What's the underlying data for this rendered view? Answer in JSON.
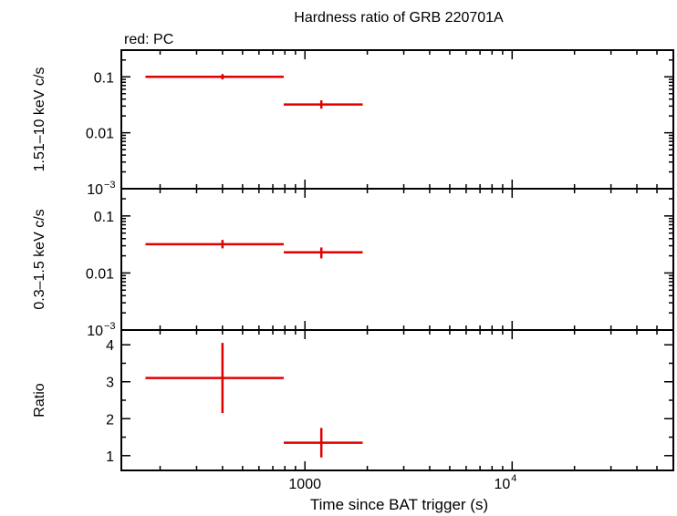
{
  "title": "Hardness ratio of GRB 220701A",
  "legend_text": "red: PC",
  "colors": {
    "series": "#e00000",
    "axis": "#000000"
  },
  "chart_data": [
    {
      "type": "scatter",
      "panel": "hard",
      "ylabel": "1.51–10 keV c/s",
      "yscale": "log",
      "ylim": [
        0.001,
        0.3
      ],
      "xscale": "log",
      "xlim": [
        130,
        60000
      ],
      "yticks": [
        {
          "value": 0.1,
          "label": "0.1"
        },
        {
          "value": 0.01,
          "label": "0.01"
        },
        {
          "value": 0.001,
          "label": "10",
          "exp": "−3"
        }
      ],
      "series": [
        {
          "points": [
            {
              "x": 400,
              "xlo": 170,
              "xhi": 790,
              "y": 0.1,
              "ylo": 0.09,
              "yhi": 0.112
            },
            {
              "x": 1200,
              "xlo": 790,
              "xhi": 1900,
              "y": 0.032,
              "ylo": 0.027,
              "yhi": 0.038
            }
          ]
        }
      ]
    },
    {
      "type": "scatter",
      "panel": "soft",
      "ylabel": "0.3–1.5 keV c/s",
      "yscale": "log",
      "ylim": [
        0.001,
        0.3
      ],
      "xscale": "log",
      "xlim": [
        130,
        60000
      ],
      "yticks": [
        {
          "value": 0.1,
          "label": "0.1"
        },
        {
          "value": 0.01,
          "label": "0.01"
        },
        {
          "value": 0.001,
          "label": "10",
          "exp": "−3"
        }
      ],
      "series": [
        {
          "points": [
            {
              "x": 400,
              "xlo": 170,
              "xhi": 790,
              "y": 0.032,
              "ylo": 0.027,
              "yhi": 0.038
            },
            {
              "x": 1200,
              "xlo": 790,
              "xhi": 1900,
              "y": 0.023,
              "ylo": 0.018,
              "yhi": 0.028
            }
          ]
        }
      ]
    },
    {
      "type": "scatter",
      "panel": "ratio",
      "ylabel": "Ratio",
      "xlabel": "Time since BAT trigger (s)",
      "yscale": "linear",
      "ylim": [
        0.6,
        4.4
      ],
      "xscale": "log",
      "xlim": [
        130,
        60000
      ],
      "yticks": [
        {
          "value": 1,
          "label": "1"
        },
        {
          "value": 2,
          "label": "2"
        },
        {
          "value": 3,
          "label": "3"
        },
        {
          "value": 4,
          "label": "4"
        }
      ],
      "xticks": [
        {
          "value": 1000,
          "label": "1000"
        },
        {
          "value": 10000,
          "label": "10",
          "exp": "4"
        }
      ],
      "series": [
        {
          "points": [
            {
              "x": 400,
              "xlo": 170,
              "xhi": 790,
              "y": 3.1,
              "ylo": 2.15,
              "yhi": 4.05
            },
            {
              "x": 1200,
              "xlo": 790,
              "xhi": 1900,
              "y": 1.35,
              "ylo": 0.95,
              "yhi": 1.75
            }
          ]
        }
      ]
    }
  ]
}
